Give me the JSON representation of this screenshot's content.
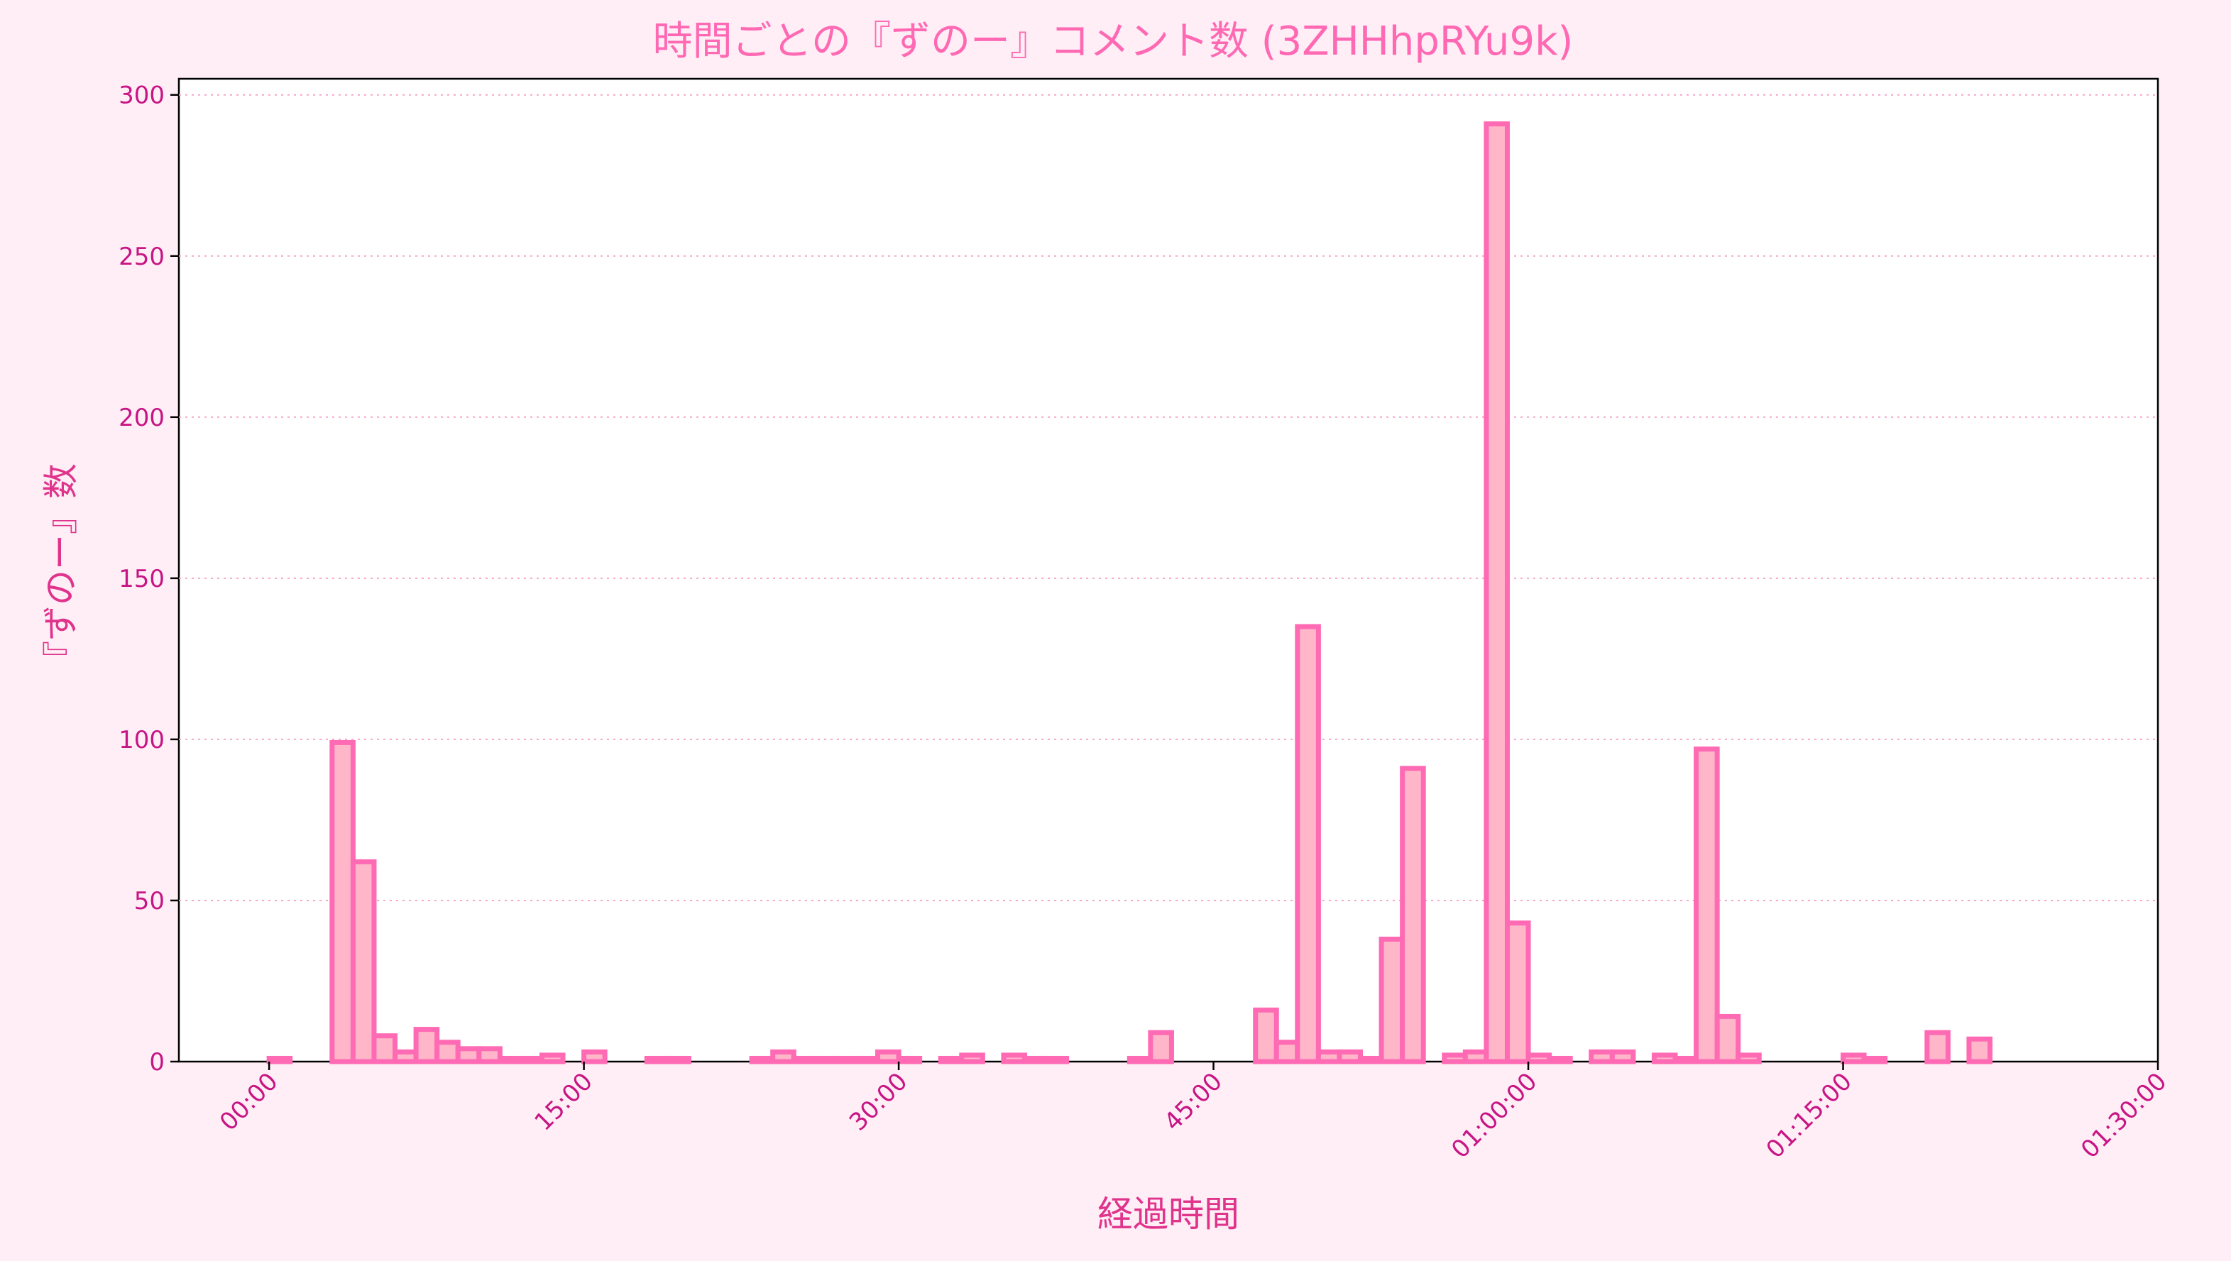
{
  "chart_data": {
    "type": "bar",
    "title": "時間ごとの『ずのー』コメント数 (3ZHHhpRYu9k)",
    "xlabel": "経過時間",
    "ylabel": "『ずのー』数",
    "bin_minutes": 1,
    "xlim_minutes": [
      -4.3,
      90
    ],
    "ylim": [
      0,
      305
    ],
    "yticks": [
      0,
      50,
      100,
      150,
      200,
      250,
      300
    ],
    "xticks": [
      {
        "minute": 0,
        "label": "00:00"
      },
      {
        "minute": 15,
        "label": "15:00"
      },
      {
        "minute": 30,
        "label": "30:00"
      },
      {
        "minute": 45,
        "label": "45:00"
      },
      {
        "minute": 60,
        "label": "01:00:00"
      },
      {
        "minute": 75,
        "label": "01:15:00"
      },
      {
        "minute": 90,
        "label": "01:30:00"
      }
    ],
    "grid": "y-dotted",
    "values": [
      1,
      0,
      0,
      99,
      62,
      8,
      3,
      10,
      6,
      4,
      4,
      1,
      1,
      2,
      0,
      3,
      0,
      0,
      1,
      1,
      0,
      0,
      0,
      1,
      3,
      1,
      1,
      1,
      1,
      3,
      1,
      0,
      1,
      2,
      0,
      2,
      1,
      1,
      0,
      0,
      0,
      1,
      9,
      0,
      0,
      0,
      0,
      16,
      6,
      135,
      3,
      3,
      1,
      38,
      91,
      0,
      2,
      3,
      291,
      43,
      2,
      1,
      0,
      3,
      3,
      0,
      2,
      1,
      97,
      14,
      2,
      0,
      0,
      0,
      0,
      2,
      1,
      0,
      0,
      9,
      0,
      7,
      0
    ]
  }
}
